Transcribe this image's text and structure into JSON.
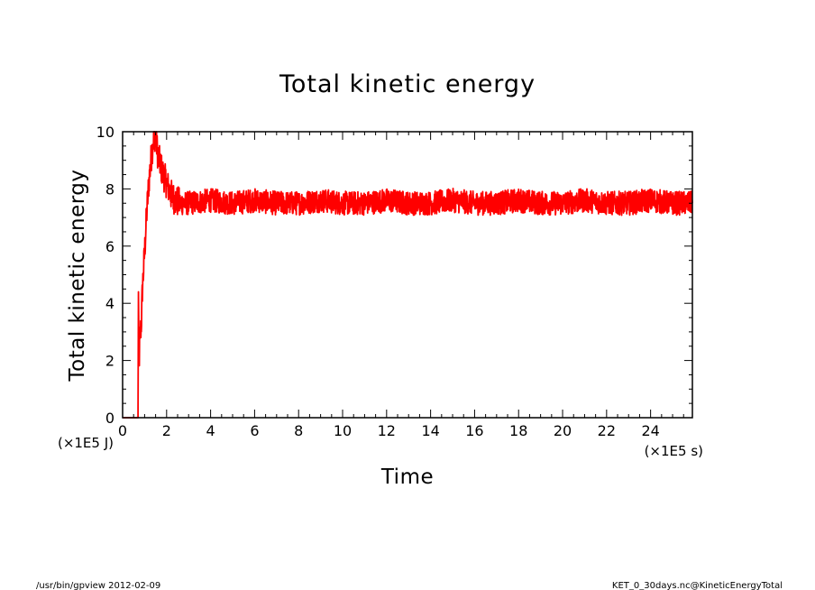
{
  "chart_data": {
    "type": "line",
    "title": "Total kinetic energy",
    "xlabel": "Time",
    "ylabel": "Total kinetic energy",
    "x_unit": "(×1E5 s)",
    "y_unit": "(×1E5 J)",
    "xlim": [
      0,
      25.9
    ],
    "ylim": [
      0,
      10
    ],
    "x_ticks": [
      0,
      2,
      4,
      6,
      8,
      10,
      12,
      14,
      16,
      18,
      20,
      22,
      24
    ],
    "y_ticks": [
      0,
      2,
      4,
      6,
      8,
      10
    ],
    "grid": false,
    "line_color": "#ff0000",
    "series": [
      {
        "x": [
          0,
          0.7,
          0.72,
          0.75,
          0.8,
          0.85,
          0.9,
          1.0,
          1.1,
          1.2,
          1.3,
          1.4,
          1.5,
          1.6,
          1.7,
          1.8,
          2.0,
          2.2,
          2.4,
          2.6,
          3,
          4,
          5,
          6,
          7,
          8,
          9,
          10,
          11,
          12,
          13,
          14,
          15,
          16,
          17,
          18,
          19,
          20,
          21,
          22,
          23,
          24,
          25,
          25.9
        ],
        "y": [
          0,
          0,
          4.4,
          2.0,
          2.9,
          3.3,
          4.5,
          5.8,
          7.2,
          8.3,
          9.1,
          9.7,
          9.9,
          9.2,
          8.9,
          8.6,
          8.2,
          7.8,
          7.6,
          7.5,
          7.5,
          7.6,
          7.5,
          7.6,
          7.5,
          7.5,
          7.6,
          7.5,
          7.5,
          7.6,
          7.5,
          7.5,
          7.6,
          7.5,
          7.5,
          7.6,
          7.5,
          7.5,
          7.6,
          7.5,
          7.5,
          7.6,
          7.5,
          7.5
        ]
      }
    ]
  },
  "footer": {
    "left": "/usr/bin/gpview   2012-02-09",
    "right": "KET_0_30days.nc@KineticEnergyTotal"
  }
}
